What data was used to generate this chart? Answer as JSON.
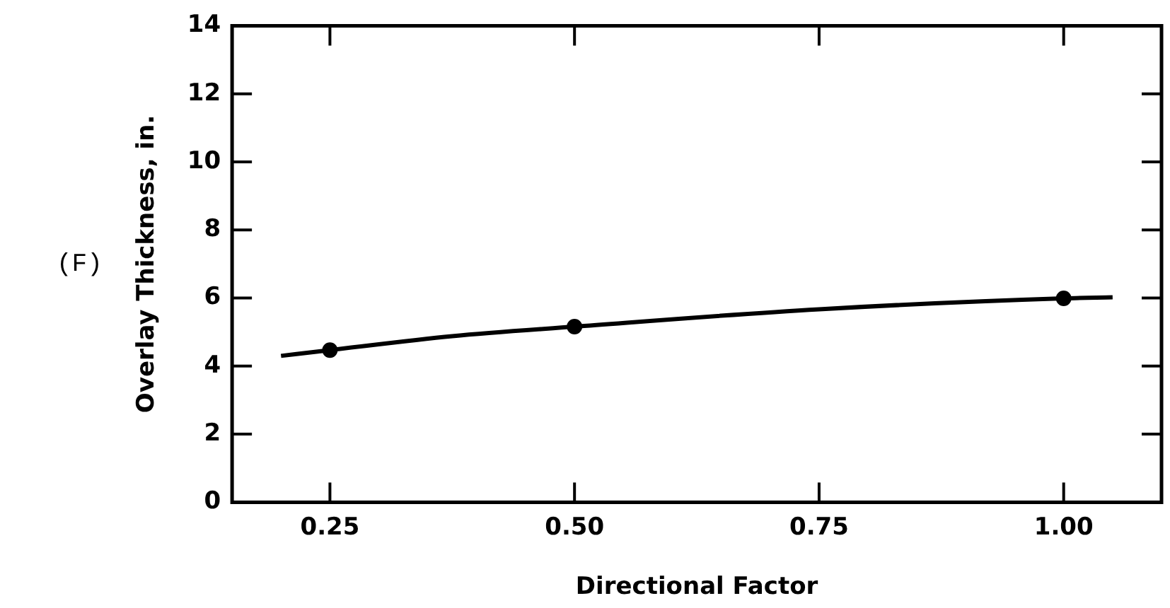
{
  "chart_data": {
    "type": "line",
    "xlabel": "Directional Factor",
    "ylabel": "Overlay Thickness, in.",
    "annotations": [
      "(F)"
    ],
    "xlim": [
      0.15,
      1.1
    ],
    "xticks": [
      {
        "value": 0.25,
        "label": "0.25"
      },
      {
        "value": 0.5,
        "label": "0.50"
      },
      {
        "value": 0.75,
        "label": "0.75"
      },
      {
        "value": 1,
        "label": "1.00"
      }
    ],
    "ylim": [
      0,
      14
    ],
    "yticks": [
      0,
      2,
      4,
      6,
      8,
      10,
      12,
      14
    ],
    "grid": false,
    "legend": false,
    "series": [
      {
        "type": "line",
        "color": "#000000",
        "marker": "none",
        "x": [
          0.2,
          0.25,
          0.375,
          0.5,
          0.75,
          1.0,
          1.05
        ],
        "values": [
          4.3,
          4.47,
          4.88,
          5.16,
          5.67,
          5.99,
          6.02
        ]
      },
      {
        "type": "scatter",
        "color": "#000000",
        "marker": "circle",
        "x": [
          0.25,
          0.5,
          1.0
        ],
        "values": [
          4.47,
          5.16,
          5.99
        ]
      }
    ]
  }
}
